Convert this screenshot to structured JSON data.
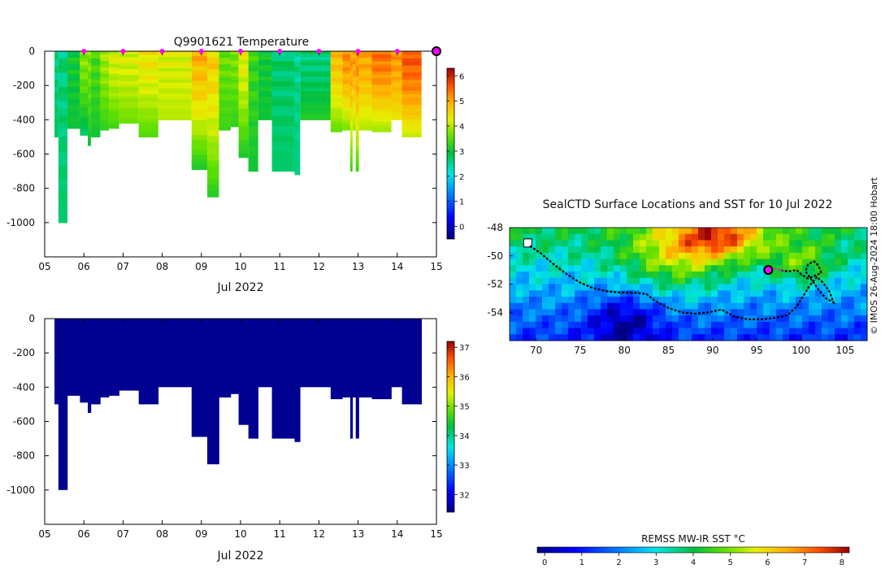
{
  "figure": {
    "credit": "© IMOS 26-Aug-2024 18:00 Hobart"
  },
  "chart_data": [
    {
      "type": "heatmap",
      "title": "Q9901621  Temperature",
      "xlabel": "Jul 2022",
      "ylabel": "",
      "xlim": [
        5,
        15
      ],
      "ylim": [
        -1200,
        0
      ],
      "x_tick_labels": [
        "05",
        "06",
        "07",
        "08",
        "09",
        "10",
        "11",
        "12",
        "13",
        "14",
        "15"
      ],
      "y_tick_labels": [
        "0",
        "-200",
        "-400",
        "-600",
        "-800",
        "-1000"
      ],
      "y_ticks": [
        0,
        -200,
        -400,
        -600,
        -800,
        -1000
      ],
      "grid": false,
      "colorbar": {
        "min": -0.5,
        "max": 6.3,
        "ticks": [
          0,
          1,
          2,
          3,
          4,
          5,
          6
        ],
        "tick_labels": [
          "0",
          "1",
          "2",
          "3",
          "4",
          "5",
          "6"
        ]
      },
      "profile_markers_x": [
        6,
        7,
        8,
        9,
        10,
        11,
        12,
        13,
        14
      ],
      "current_marker_x": 15,
      "profiles": [
        {
          "x0": 5.25,
          "x1": 5.35,
          "depth": 500,
          "surface": 2.6,
          "bottom": 2.8
        },
        {
          "x0": 5.35,
          "x1": 5.58,
          "depth": 1000,
          "surface": 2.6,
          "bottom": 2.7
        },
        {
          "x0": 5.58,
          "x1": 5.9,
          "depth": 450,
          "surface": 3.0,
          "bottom": 3.0
        },
        {
          "x0": 5.9,
          "x1": 6.1,
          "depth": 490,
          "surface": 3.8,
          "bottom": 2.6
        },
        {
          "x0": 6.1,
          "x1": 6.18,
          "depth": 550,
          "surface": 3.7,
          "bottom": 2.9
        },
        {
          "x0": 6.18,
          "x1": 6.42,
          "depth": 500,
          "surface": 3.4,
          "bottom": 3.0
        },
        {
          "x0": 6.42,
          "x1": 6.64,
          "depth": 460,
          "surface": 3.9,
          "bottom": 3.2
        },
        {
          "x0": 6.64,
          "x1": 6.9,
          "depth": 450,
          "surface": 4.2,
          "bottom": 3.3
        },
        {
          "x0": 6.9,
          "x1": 7.4,
          "depth": 420,
          "surface": 4.2,
          "bottom": 3.6
        },
        {
          "x0": 7.4,
          "x1": 7.9,
          "depth": 500,
          "surface": 4.4,
          "bottom": 3.4
        },
        {
          "x0": 7.9,
          "x1": 8.75,
          "depth": 400,
          "surface": 4.2,
          "bottom": 4.0
        },
        {
          "x0": 8.75,
          "x1": 9.15,
          "depth": 690,
          "surface": 4.9,
          "bottom": 3.0
        },
        {
          "x0": 9.15,
          "x1": 9.45,
          "depth": 850,
          "surface": 4.6,
          "bottom": 3.1
        },
        {
          "x0": 9.45,
          "x1": 9.75,
          "depth": 460,
          "surface": 3.6,
          "bottom": 3.3
        },
        {
          "x0": 9.75,
          "x1": 9.95,
          "depth": 440,
          "surface": 3.7,
          "bottom": 3.2
        },
        {
          "x0": 9.95,
          "x1": 10.2,
          "depth": 620,
          "surface": 4.3,
          "bottom": 3.0
        },
        {
          "x0": 10.2,
          "x1": 10.45,
          "depth": 700,
          "surface": 3.3,
          "bottom": 3.0
        },
        {
          "x0": 10.45,
          "x1": 10.8,
          "depth": 400,
          "surface": 3.0,
          "bottom": 3.0
        },
        {
          "x0": 10.8,
          "x1": 11.38,
          "depth": 700,
          "surface": 2.7,
          "bottom": 2.7
        },
        {
          "x0": 11.38,
          "x1": 11.52,
          "depth": 720,
          "surface": 2.5,
          "bottom": 2.6
        },
        {
          "x0": 11.52,
          "x1": 12.3,
          "depth": 400,
          "surface": 2.6,
          "bottom": 3.2
        },
        {
          "x0": 12.3,
          "x1": 12.6,
          "depth": 470,
          "surface": 4.8,
          "bottom": 3.5
        },
        {
          "x0": 12.6,
          "x1": 12.8,
          "depth": 460,
          "surface": 5.2,
          "bottom": 3.6
        },
        {
          "x0": 12.8,
          "x1": 12.86,
          "depth": 700,
          "surface": 5.1,
          "bottom": 3.2
        },
        {
          "x0": 12.86,
          "x1": 12.94,
          "depth": 460,
          "surface": 5.1,
          "bottom": 3.8
        },
        {
          "x0": 12.94,
          "x1": 13.02,
          "depth": 700,
          "surface": 5.2,
          "bottom": 3.2
        },
        {
          "x0": 13.02,
          "x1": 13.35,
          "depth": 460,
          "surface": 5.0,
          "bottom": 3.9
        },
        {
          "x0": 13.35,
          "x1": 13.85,
          "depth": 470,
          "surface": 5.4,
          "bottom": 3.8
        },
        {
          "x0": 13.85,
          "x1": 14.12,
          "depth": 400,
          "surface": 5.1,
          "bottom": 4.3
        },
        {
          "x0": 14.12,
          "x1": 14.62,
          "depth": 500,
          "surface": 5.6,
          "bottom": 4.0
        }
      ]
    },
    {
      "type": "heatmap",
      "title": "",
      "xlabel": "Jul 2022",
      "ylabel": "",
      "xlim": [
        5,
        15
      ],
      "ylim": [
        -1200,
        0
      ],
      "x_tick_labels": [
        "05",
        "06",
        "07",
        "08",
        "09",
        "10",
        "11",
        "12",
        "13",
        "14",
        "15"
      ],
      "y_tick_labels": [
        "0",
        "-200",
        "-400",
        "-600",
        "-800",
        "-1000"
      ],
      "y_ticks": [
        0,
        -200,
        -400,
        -600,
        -800,
        -1000
      ],
      "grid": false,
      "colorbar": {
        "min": 31.4,
        "max": 37.2,
        "ticks": [
          32,
          33,
          34,
          35,
          36,
          37
        ],
        "tick_labels": [
          "32",
          "33",
          "34",
          "35",
          "36",
          "37"
        ]
      },
      "fill_value": 31.5
    },
    {
      "type": "heatmap",
      "title": "SealCTD Surface Locations and SST for 10 Jul 2022",
      "xlabel": "",
      "ylabel": "",
      "xlim": [
        67,
        107.5
      ],
      "ylim": [
        -56,
        -48
      ],
      "x_tick_labels": [
        "70",
        "75",
        "80",
        "85",
        "90",
        "95",
        "100",
        "105"
      ],
      "x_ticks": [
        70,
        75,
        80,
        85,
        90,
        95,
        100,
        105
      ],
      "y_tick_labels": [
        "-48",
        "-50",
        "-52",
        "-54"
      ],
      "y_ticks": [
        -48,
        -50,
        -52,
        -54
      ],
      "grid": false,
      "colorbar": {
        "label": "REMSS MW-IR SST °C",
        "min": -0.2,
        "max": 8.2,
        "ticks": [
          0,
          1,
          2,
          3,
          4,
          5,
          6,
          7,
          8
        ],
        "tick_labels": [
          "0",
          "1",
          "2",
          "3",
          "4",
          "5",
          "6",
          "7",
          "8"
        ]
      },
      "track_lon": [
        69.3,
        70.5,
        72,
        73.5,
        75,
        76.5,
        78,
        79.5,
        81,
        82.5,
        83.5,
        85,
        86.5,
        88,
        89.5,
        91,
        92.5,
        94,
        95.5,
        97,
        98.5,
        99.5,
        100.3,
        101,
        101.8,
        102.5,
        103.2,
        103.7,
        102.8,
        102,
        101.2,
        100.5,
        100.8,
        101.5,
        102,
        102.3,
        101.6,
        100.8,
        100,
        99.5,
        98.5,
        97.5
      ],
      "track_lat": [
        -49.3,
        -49.8,
        -50.6,
        -51.3,
        -51.9,
        -52.3,
        -52.5,
        -52.6,
        -52.6,
        -52.7,
        -53.2,
        -53.7,
        -54.0,
        -54.1,
        -54.0,
        -53.8,
        -54.3,
        -54.5,
        -54.5,
        -54.4,
        -54.2,
        -53.6,
        -52.8,
        -52.1,
        -51.5,
        -51.9,
        -52.5,
        -53.3,
        -53.0,
        -52.4,
        -51.7,
        -51.1,
        -50.6,
        -50.4,
        -50.7,
        -51.2,
        -51.4,
        -51.6,
        -51.3,
        -51.0,
        -51.1,
        -51.0
      ],
      "current_position": [
        96.3,
        -51.0
      ],
      "recent_track_lon": [
        96.3,
        97.2,
        98.2
      ],
      "recent_track_lat": [
        -51.0,
        -50.9,
        -51.1
      ]
    }
  ]
}
